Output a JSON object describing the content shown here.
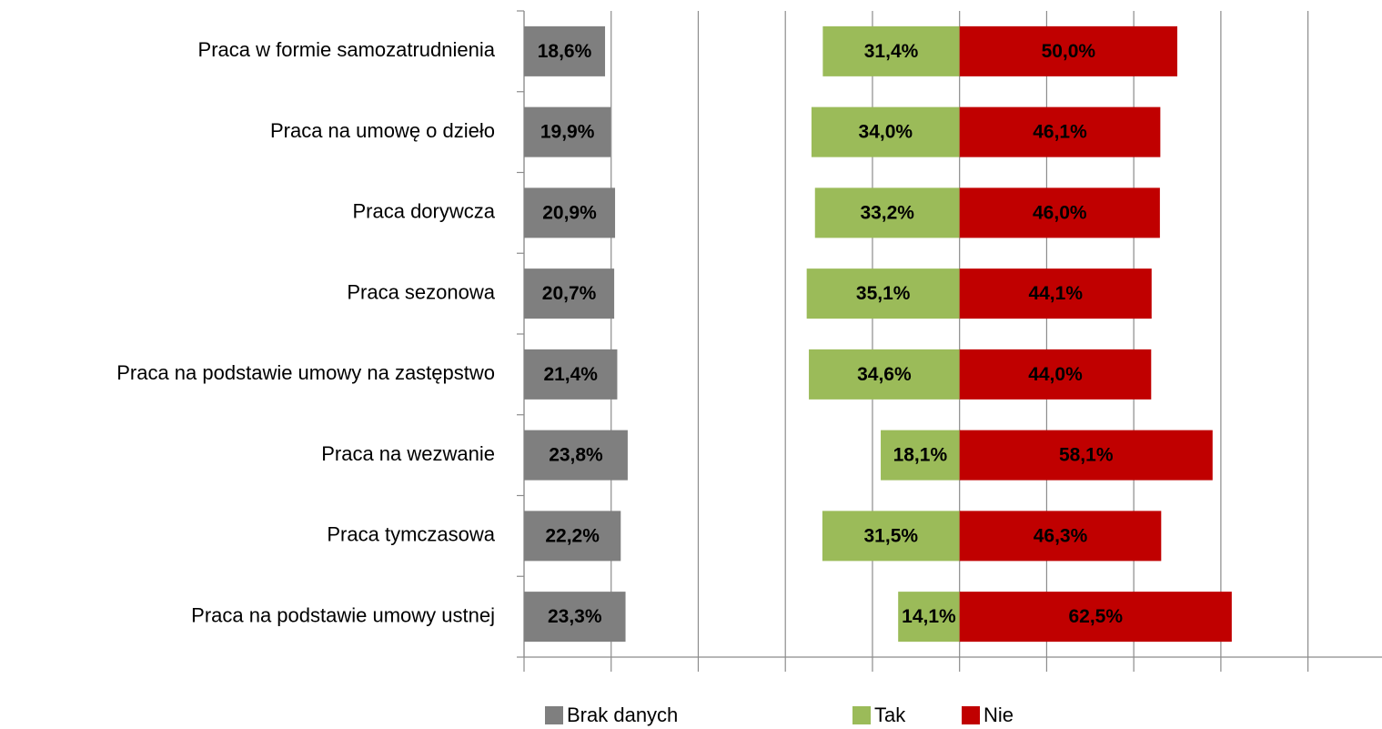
{
  "chart_data": {
    "type": "diverging_bar",
    "categories": [
      "Praca w formie samozatrudnienia",
      "Praca na umowę o dzieło",
      "Praca dorywcza",
      "Praca sezonowa",
      "Praca na podstawie umowy na zastępstwo",
      "Praca na wezwanie",
      "Praca tymczasowa",
      "Praca na podstawie umowy ustnej"
    ],
    "series": [
      {
        "name": "Brak danych",
        "color": "#7f7f7f",
        "values": [
          18.6,
          19.9,
          20.9,
          20.7,
          21.4,
          23.8,
          22.2,
          23.3
        ],
        "value_labels": [
          "18,6%",
          "19,9%",
          "20,9%",
          "20,7%",
          "21,4%",
          "23,8%",
          "22,2%",
          "23,3%"
        ]
      },
      {
        "name": "Tak",
        "color": "#9bbb59",
        "values": [
          31.4,
          34.0,
          33.2,
          35.1,
          34.6,
          18.1,
          31.5,
          14.1
        ],
        "value_labels": [
          "31,4%",
          "34,0%",
          "33,2%",
          "35,1%",
          "34,6%",
          "18,1%",
          "31,5%",
          "14,1%"
        ]
      },
      {
        "name": "Nie",
        "color": "#c00000",
        "values": [
          50.0,
          46.1,
          46.0,
          44.1,
          44.0,
          58.1,
          46.3,
          62.5
        ],
        "value_labels": [
          "50,0%",
          "46,1%",
          "46,0%",
          "44,1%",
          "44,0%",
          "58,1%",
          "46,3%",
          "62,5%"
        ]
      }
    ],
    "xlim": [
      0,
      197
    ],
    "xticks": [
      0,
      20,
      40,
      60,
      80,
      100,
      120,
      140,
      160,
      180
    ],
    "grid": true
  }
}
